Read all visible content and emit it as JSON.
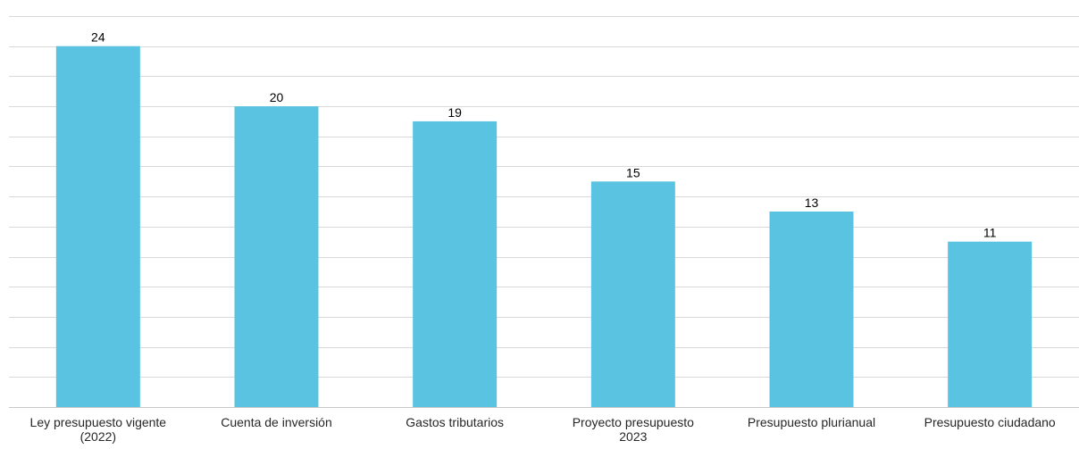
{
  "chart_data": {
    "type": "bar",
    "categories": [
      [
        "Ley presupuesto vigente",
        "(2022)"
      ],
      [
        "Cuenta de inversión"
      ],
      [
        "Gastos tributarios"
      ],
      [
        "Proyecto presupuesto",
        "2023"
      ],
      [
        "Presupuesto plurianual"
      ],
      [
        "Presupuesto ciudadano"
      ]
    ],
    "values": [
      24,
      20,
      19,
      15,
      13,
      11
    ],
    "ylim": [
      0,
      26
    ],
    "grid_step": 2,
    "grid": true,
    "legend": "none",
    "bar_color": "#5bc3e2",
    "title": "",
    "xlabel": "",
    "ylabel": ""
  }
}
